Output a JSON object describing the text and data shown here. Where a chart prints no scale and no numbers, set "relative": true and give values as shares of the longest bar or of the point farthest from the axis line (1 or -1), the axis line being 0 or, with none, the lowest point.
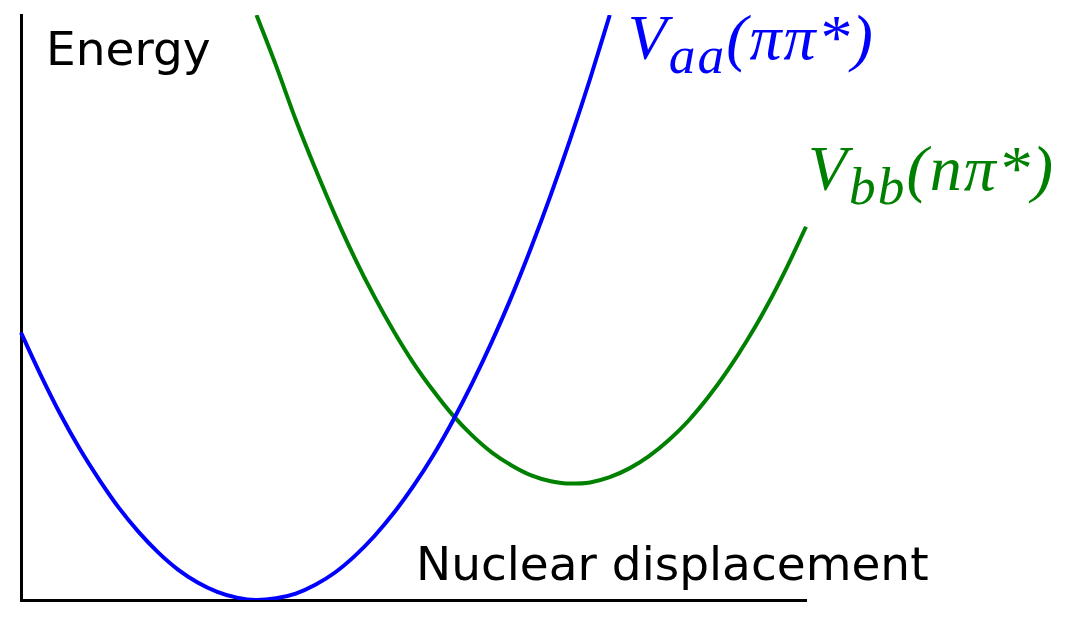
{
  "chart_data": {
    "type": "line",
    "relative": true,
    "xlabel": "Nuclear displacement",
    "ylabel": "Energy",
    "categories": [
      null,
      null,
      null,
      null,
      null,
      null,
      null,
      null,
      null,
      null,
      null,
      null,
      null,
      null,
      null,
      null,
      null,
      null,
      null,
      null,
      null,
      null,
      null,
      null,
      null,
      null,
      null,
      null,
      null,
      null,
      null,
      null,
      null,
      null,
      null,
      null,
      null,
      null,
      null,
      null,
      null
    ],
    "series": [
      {
        "name": "V$_{aa}$(ππ*)",
        "color": "#0000ff",
        "values": [
          0.457,
          0.385,
          0.318,
          0.258,
          0.205,
          0.157,
          0.116,
          0.081,
          0.052,
          0.03,
          0.014,
          0.004,
          0.0,
          0.003,
          0.011,
          0.026,
          0.047,
          0.075,
          0.109,
          0.149,
          0.195,
          0.247,
          0.306,
          0.371,
          0.442,
          0.519,
          0.603,
          0.693,
          0.789,
          0.891,
          1.0,
          null,
          null,
          null,
          null,
          null,
          null,
          null,
          null,
          null,
          null
        ]
      },
      {
        "name": "V$_{bb}$(nπ*)",
        "color": "#008000",
        "values": [
          null,
          null,
          null,
          null,
          null,
          null,
          null,
          null,
          null,
          null,
          null,
          null,
          1.0,
          0.913,
          0.821,
          0.737,
          0.658,
          0.585,
          0.519,
          0.459,
          0.405,
          0.358,
          0.316,
          0.281,
          0.252,
          0.23,
          0.213,
          0.203,
          0.199,
          0.201,
          0.21,
          0.225,
          0.246,
          0.273,
          0.306,
          0.346,
          0.392,
          0.444,
          0.502,
          0.567,
          0.638
        ]
      }
    ],
    "legend": false,
    "grid": false
  }
}
